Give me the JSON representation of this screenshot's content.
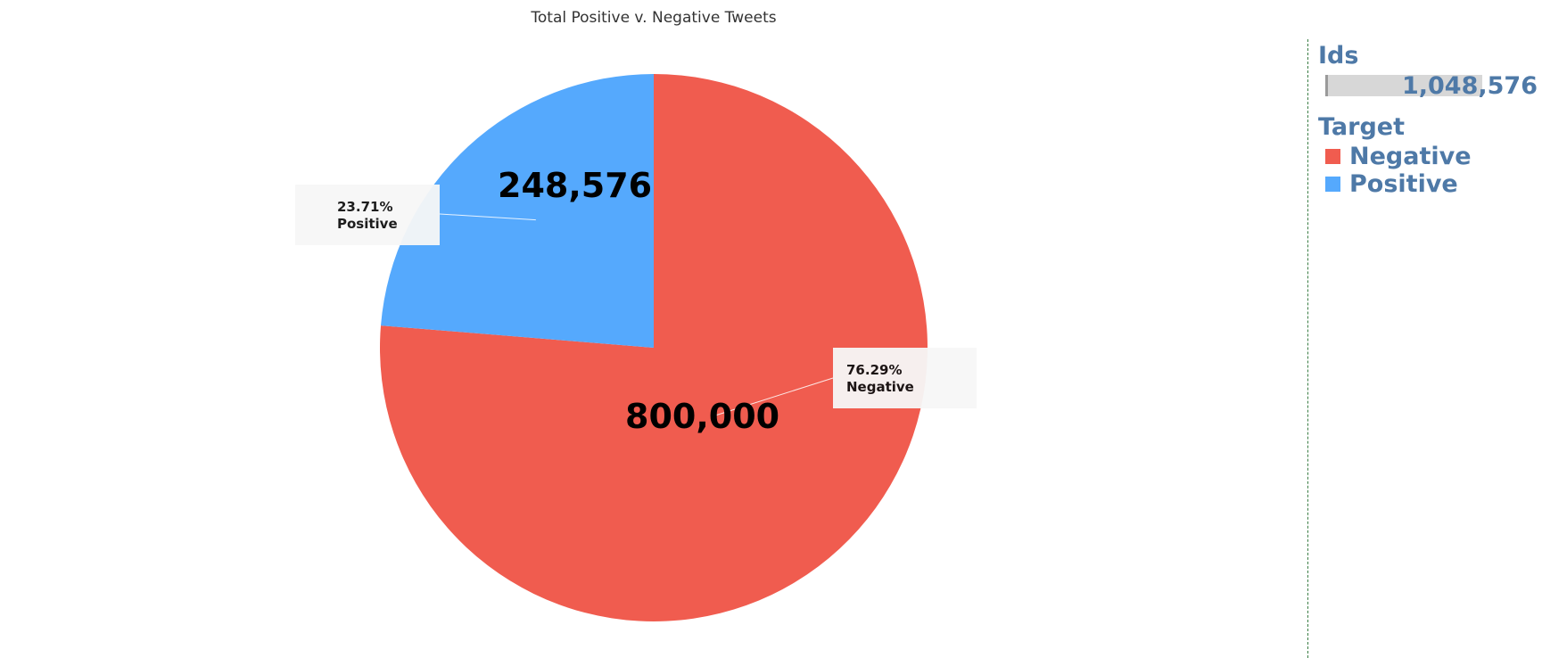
{
  "chart_data": {
    "type": "pie",
    "title": "Total Positive v. Negative Tweets",
    "slices": [
      {
        "label": "Negative",
        "value": 800000,
        "value_label": "800,000",
        "percent_label": "76.29%",
        "color": "#f05c4f"
      },
      {
        "label": "Positive",
        "value": 248576,
        "value_label": "248,576",
        "percent_label": "23.71%",
        "color": "#55a9fd"
      }
    ],
    "start_angle_deg": 0,
    "direction": "clockwise"
  },
  "legend": {
    "ids_heading": "Ids",
    "ids_value": "1,048,576",
    "target_heading": "Target",
    "items": [
      {
        "label": "Negative",
        "color": "#f05c4f"
      },
      {
        "label": "Positive",
        "color": "#55a9fd"
      }
    ],
    "heading_color": "#4e79a7"
  }
}
